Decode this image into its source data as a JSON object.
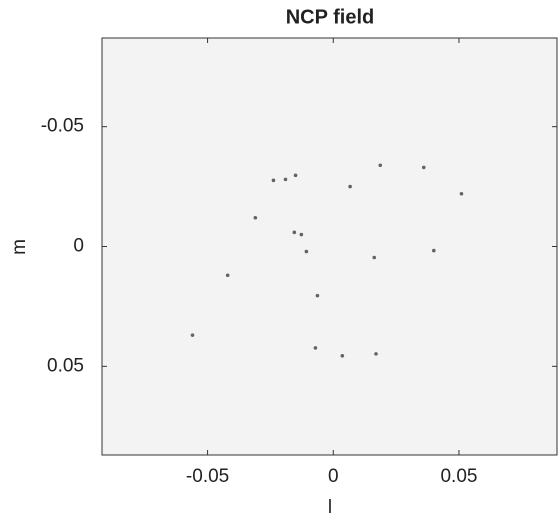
{
  "chart_data": {
    "type": "scatter",
    "title": "NCP field",
    "x_label": "l",
    "y_label": "m",
    "xlim": [
      -0.092,
      0.089
    ],
    "ylim": [
      -0.087,
      0.087
    ],
    "y_reversed": true,
    "xticks": [
      -0.05,
      0,
      0.05
    ],
    "yticks": [
      -0.05,
      0,
      0.05
    ],
    "background": "#f3f3f3",
    "series": [
      {
        "color": "#333333",
        "x": [
          -0.0107,
          -0.056,
          -0.042,
          -0.031,
          -0.0155,
          -0.0127,
          0.0163,
          -0.0063,
          -0.0071,
          0.0036,
          0.017,
          -0.0238,
          -0.019,
          -0.015,
          0.0187,
          0.036,
          0.051,
          0.04,
          0.0067
        ],
        "values": [
          0.0021,
          0.037,
          0.012,
          -0.012,
          -0.0059,
          -0.005,
          0.0046,
          0.0205,
          0.0423,
          0.0456,
          0.0448,
          -0.0276,
          -0.028,
          -0.0297,
          -0.0339,
          -0.033,
          -0.022,
          0.0017,
          -0.025
        ]
      }
    ]
  }
}
